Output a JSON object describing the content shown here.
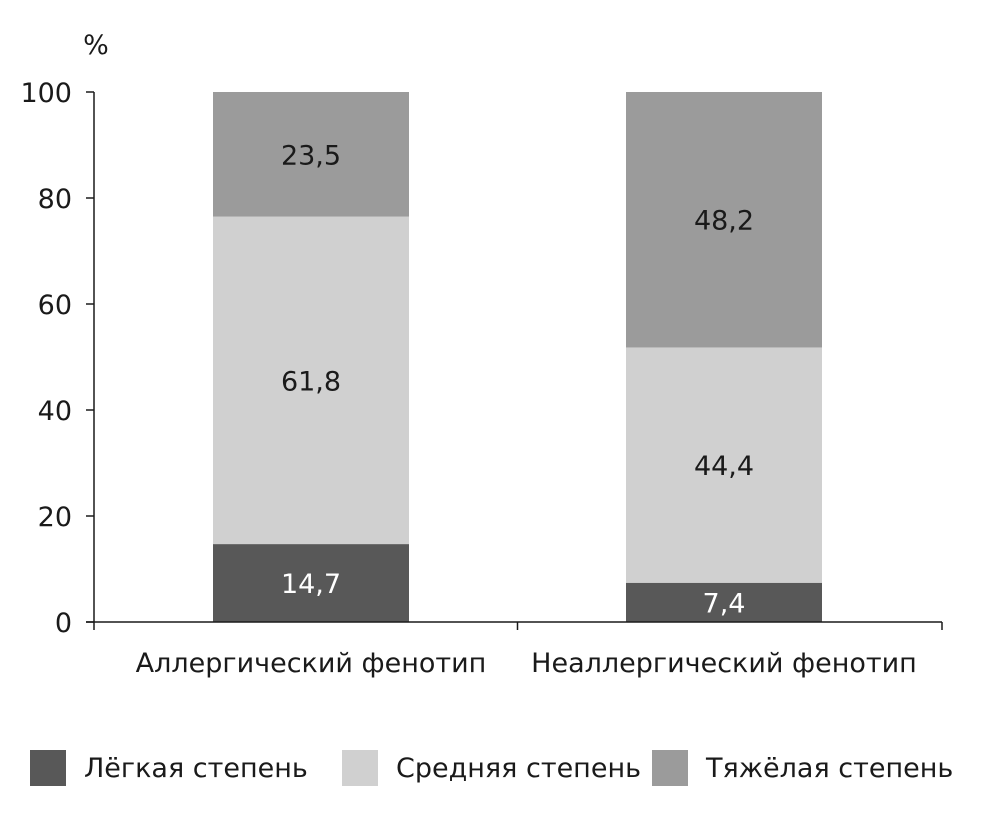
{
  "chart_data": {
    "type": "bar",
    "stacked": true,
    "ylabel": "%",
    "ylim": [
      0,
      100
    ],
    "yticks": [
      0,
      20,
      40,
      60,
      80,
      100
    ],
    "grid": false,
    "legend_position": "bottom",
    "categories": [
      "Аллергический фенотип",
      "Неаллергический фенотип"
    ],
    "series": [
      {
        "name": "Лёгкая степень",
        "values": [
          14.7,
          7.4
        ],
        "labels": [
          "14,7",
          "7,4"
        ],
        "color": "#585858",
        "label_color": "#ffffff"
      },
      {
        "name": "Средняя степень",
        "values": [
          61.8,
          44.4
        ],
        "labels": [
          "61,8",
          "44,4"
        ],
        "color": "#d0d0d0",
        "label_color": "#1a1a1a"
      },
      {
        "name": "Тяжёлая степень",
        "values": [
          23.5,
          48.2
        ],
        "labels": [
          "23,5",
          "48,2"
        ],
        "color": "#9b9b9b",
        "label_color": "#1a1a1a"
      }
    ]
  }
}
